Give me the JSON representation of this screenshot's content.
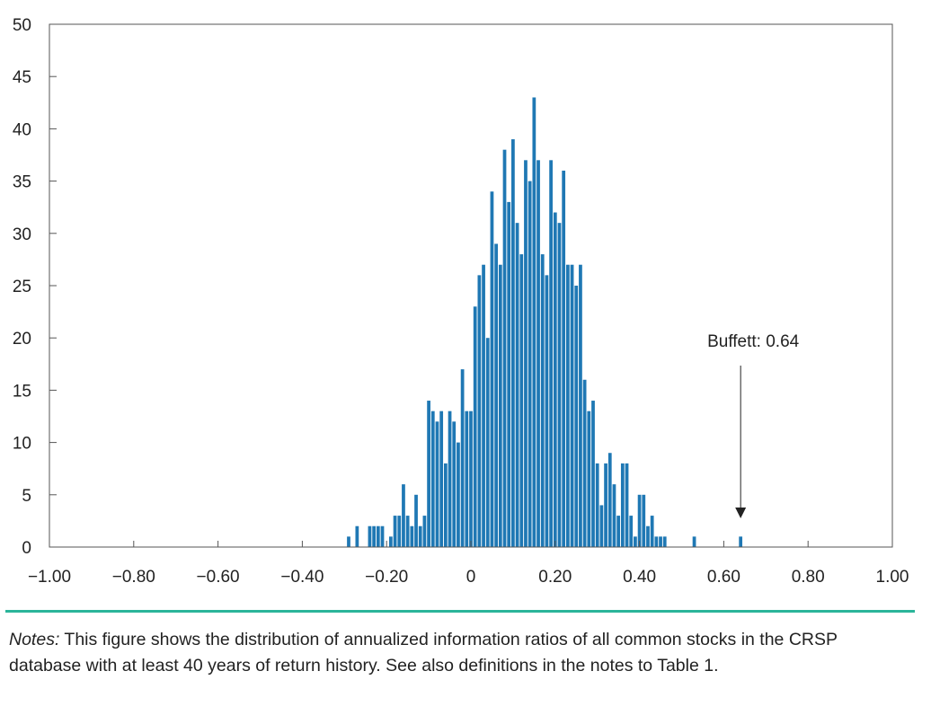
{
  "chart_data": {
    "type": "bar",
    "title": "",
    "xlabel": "",
    "ylabel": "",
    "xlim": [
      -1.0,
      1.0
    ],
    "ylim": [
      0,
      50
    ],
    "x_ticks": [
      "-1.00",
      "-0.80",
      "-0.60",
      "-0.40",
      "-0.20",
      "0",
      "0.20",
      "0.40",
      "0.60",
      "0.80",
      "1.00"
    ],
    "y_ticks": [
      "0",
      "5",
      "10",
      "15",
      "20",
      "25",
      "30",
      "35",
      "40",
      "45",
      "50"
    ],
    "bin_width": 0.01,
    "bar_color": "#1f78b4",
    "grid": false,
    "bins": [
      {
        "x": -0.29,
        "count": 1
      },
      {
        "x": -0.27,
        "count": 2
      },
      {
        "x": -0.24,
        "count": 2
      },
      {
        "x": -0.23,
        "count": 2
      },
      {
        "x": -0.22,
        "count": 2
      },
      {
        "x": -0.21,
        "count": 2
      },
      {
        "x": -0.19,
        "count": 1
      },
      {
        "x": -0.18,
        "count": 3
      },
      {
        "x": -0.17,
        "count": 3
      },
      {
        "x": -0.16,
        "count": 6
      },
      {
        "x": -0.15,
        "count": 3
      },
      {
        "x": -0.14,
        "count": 2
      },
      {
        "x": -0.13,
        "count": 5
      },
      {
        "x": -0.12,
        "count": 2
      },
      {
        "x": -0.11,
        "count": 3
      },
      {
        "x": -0.1,
        "count": 14
      },
      {
        "x": -0.09,
        "count": 13
      },
      {
        "x": -0.08,
        "count": 12
      },
      {
        "x": -0.07,
        "count": 13
      },
      {
        "x": -0.06,
        "count": 8
      },
      {
        "x": -0.05,
        "count": 13
      },
      {
        "x": -0.04,
        "count": 12
      },
      {
        "x": -0.03,
        "count": 10
      },
      {
        "x": -0.02,
        "count": 17
      },
      {
        "x": -0.01,
        "count": 13
      },
      {
        "x": 0.0,
        "count": 13
      },
      {
        "x": 0.01,
        "count": 23
      },
      {
        "x": 0.02,
        "count": 26
      },
      {
        "x": 0.03,
        "count": 27
      },
      {
        "x": 0.04,
        "count": 20
      },
      {
        "x": 0.05,
        "count": 34
      },
      {
        "x": 0.06,
        "count": 29
      },
      {
        "x": 0.07,
        "count": 27
      },
      {
        "x": 0.08,
        "count": 38
      },
      {
        "x": 0.09,
        "count": 33
      },
      {
        "x": 0.1,
        "count": 39
      },
      {
        "x": 0.11,
        "count": 31
      },
      {
        "x": 0.12,
        "count": 28
      },
      {
        "x": 0.13,
        "count": 37
      },
      {
        "x": 0.14,
        "count": 35
      },
      {
        "x": 0.15,
        "count": 43
      },
      {
        "x": 0.16,
        "count": 37
      },
      {
        "x": 0.17,
        "count": 28
      },
      {
        "x": 0.18,
        "count": 26
      },
      {
        "x": 0.19,
        "count": 37
      },
      {
        "x": 0.2,
        "count": 32
      },
      {
        "x": 0.21,
        "count": 31
      },
      {
        "x": 0.22,
        "count": 36
      },
      {
        "x": 0.23,
        "count": 27
      },
      {
        "x": 0.24,
        "count": 27
      },
      {
        "x": 0.25,
        "count": 25
      },
      {
        "x": 0.26,
        "count": 27
      },
      {
        "x": 0.27,
        "count": 16
      },
      {
        "x": 0.28,
        "count": 13
      },
      {
        "x": 0.29,
        "count": 14
      },
      {
        "x": 0.3,
        "count": 8
      },
      {
        "x": 0.31,
        "count": 4
      },
      {
        "x": 0.32,
        "count": 8
      },
      {
        "x": 0.33,
        "count": 9
      },
      {
        "x": 0.34,
        "count": 6
      },
      {
        "x": 0.35,
        "count": 3
      },
      {
        "x": 0.36,
        "count": 8
      },
      {
        "x": 0.37,
        "count": 8
      },
      {
        "x": 0.38,
        "count": 3
      },
      {
        "x": 0.39,
        "count": 1
      },
      {
        "x": 0.4,
        "count": 5
      },
      {
        "x": 0.41,
        "count": 5
      },
      {
        "x": 0.42,
        "count": 2
      },
      {
        "x": 0.43,
        "count": 3
      },
      {
        "x": 0.44,
        "count": 1
      },
      {
        "x": 0.45,
        "count": 1
      },
      {
        "x": 0.46,
        "count": 1
      },
      {
        "x": 0.53,
        "count": 1
      },
      {
        "x": 0.64,
        "count": 1
      }
    ],
    "annotations": [
      {
        "text": "Buffett: 0.64",
        "x": 0.64
      }
    ]
  },
  "notes": {
    "label": "Notes:",
    "text": " This figure shows the distribution of annualized information ratios of all common stocks in the CRSP database with at least 40 years of return history. See also definitions in the notes to Table 1."
  }
}
